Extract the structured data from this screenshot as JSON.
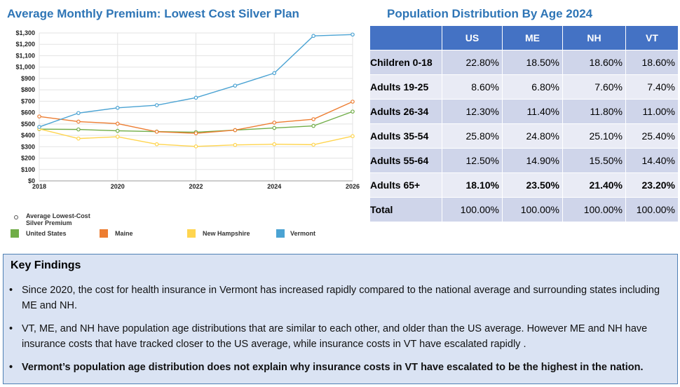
{
  "chart_title": "Average Monthly Premium: Lowest Cost Silver Plan",
  "table_title": "Population Distribution By Age 2024",
  "chart_data": {
    "type": "line",
    "title": "Average Monthly Premium: Lowest Cost Silver Plan",
    "xlabel": "",
    "ylabel": "",
    "x": [
      2018,
      2019,
      2020,
      2021,
      2022,
      2023,
      2024,
      2025,
      2026
    ],
    "xticks": [
      "2018",
      "2020",
      "2022",
      "2024",
      "2026"
    ],
    "yticks": [
      "$0",
      "$100",
      "$200",
      "$300",
      "$400",
      "$500",
      "$600",
      "$700",
      "$800",
      "$900",
      "$1,000",
      "$1,100",
      "$1,200",
      "$1,300"
    ],
    "ylim": [
      0,
      1300
    ],
    "xlim": [
      2018,
      2026
    ],
    "grid": true,
    "series": [
      {
        "name": "United States",
        "color": "#70ad47",
        "values": [
          455,
          452,
          440,
          433,
          428,
          446,
          465,
          483,
          609
        ]
      },
      {
        "name": "Maine",
        "color": "#ed7d31",
        "values": [
          566,
          521,
          503,
          432,
          418,
          446,
          512,
          542,
          696
        ]
      },
      {
        "name": "New Hampshire",
        "color": "#ffd54f",
        "values": [
          457,
          372,
          388,
          322,
          303,
          316,
          322,
          318,
          393
        ]
      },
      {
        "name": "Vermont",
        "color": "#4ba3d3",
        "values": [
          474,
          596,
          642,
          665,
          731,
          837,
          947,
          1274,
          1286
        ]
      }
    ],
    "legend_marker_label": "Average Lowest-Cost Silver Premium"
  },
  "legend": {
    "marker_label": "Average Lowest-Cost Silver Premium",
    "items": [
      {
        "label": "United States",
        "color": "#70ad47"
      },
      {
        "label": "Maine",
        "color": "#ed7d31"
      },
      {
        "label": "New Hampshire",
        "color": "#ffd54f"
      },
      {
        "label": "Vermont",
        "color": "#4ba3d3"
      }
    ]
  },
  "population_table": {
    "columns": [
      "",
      "US",
      "ME",
      "NH",
      "VT"
    ],
    "rows": [
      {
        "label": "Children 0-18",
        "values": [
          "22.80%",
          "18.50%",
          "18.60%",
          "18.60%"
        ]
      },
      {
        "label": "Adults 19-25",
        "values": [
          "8.60%",
          "6.80%",
          "7.60%",
          "7.40%"
        ]
      },
      {
        "label": "Adults 26-34",
        "values": [
          "12.30%",
          "11.40%",
          "11.80%",
          "11.00%"
        ]
      },
      {
        "label": "Adults 35-54",
        "values": [
          "25.80%",
          "24.80%",
          "25.10%",
          "25.40%"
        ]
      },
      {
        "label": "Adults 55-64",
        "values": [
          "12.50%",
          "14.90%",
          "15.50%",
          "14.40%"
        ]
      },
      {
        "label": "Adults 65+",
        "values": [
          "18.10%",
          "23.50%",
          "21.40%",
          "23.20%"
        ]
      },
      {
        "label": "Total",
        "values": [
          "100.00%",
          "100.00%",
          "100.00%",
          "100.00%"
        ]
      }
    ]
  },
  "findings": {
    "title": "Key Findings",
    "bullet": "•",
    "items": [
      "Since 2020, the cost for health insurance in Vermont has increased rapidly compared to the national average and surrounding states including ME and NH.",
      "VT, ME, and NH have population age distributions that are similar to each other, and older than the US average. However ME and NH have insurance costs that have tracked closer to the US average, while insurance costs in VT have escalated rapidly .",
      "Vermont’s population age distribution does not explain why insurance costs in VT have escalated to be the highest in the nation."
    ]
  }
}
